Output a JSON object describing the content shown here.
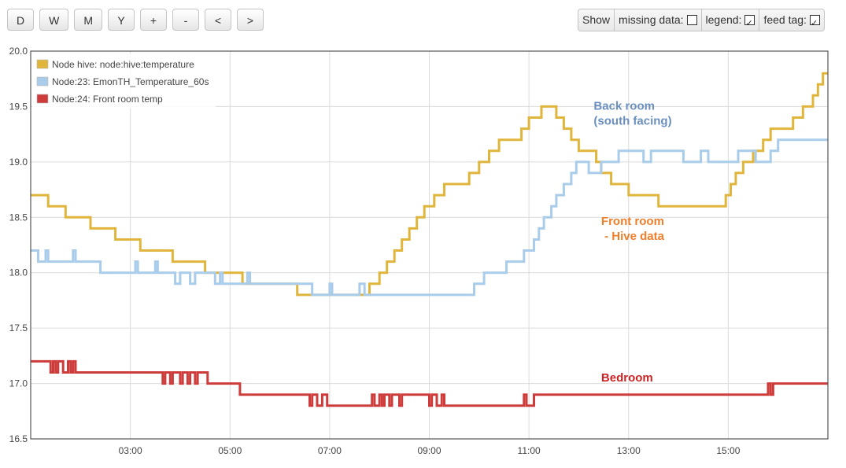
{
  "toolbar": {
    "buttons": [
      "D",
      "W",
      "M",
      "Y",
      "+",
      "-",
      "<",
      ">"
    ]
  },
  "options": {
    "show_label": "Show",
    "missing_label": "missing data:",
    "missing_checked": false,
    "legend_label": "legend:",
    "legend_checked": true,
    "feedtag_label": "feed tag:",
    "feedtag_checked": true
  },
  "chart_data": {
    "type": "line",
    "xlim": [
      1.0,
      17.0
    ],
    "ylim": [
      16.5,
      20.0
    ],
    "xticks": [
      "03:00",
      "05:00",
      "07:00",
      "09:00",
      "11:00",
      "13:00",
      "15:00"
    ],
    "yticks": [
      "16.5",
      "17.0",
      "17.5",
      "18.0",
      "18.5",
      "19.0",
      "19.5",
      "20.0"
    ],
    "grid": true,
    "legend_position": "top-left",
    "series": [
      {
        "name": "Node hive: node:hive:temperature",
        "color": "#e0b53c",
        "points": [
          [
            1.0,
            18.7
          ],
          [
            1.35,
            18.7
          ],
          [
            1.35,
            18.6
          ],
          [
            1.7,
            18.6
          ],
          [
            1.7,
            18.5
          ],
          [
            2.2,
            18.5
          ],
          [
            2.2,
            18.4
          ],
          [
            2.7,
            18.4
          ],
          [
            2.7,
            18.3
          ],
          [
            3.2,
            18.3
          ],
          [
            3.2,
            18.2
          ],
          [
            3.85,
            18.2
          ],
          [
            3.85,
            18.1
          ],
          [
            4.5,
            18.1
          ],
          [
            4.5,
            18.0
          ],
          [
            5.25,
            18.0
          ],
          [
            5.25,
            17.9
          ],
          [
            6.35,
            17.9
          ],
          [
            6.35,
            17.8
          ],
          [
            7.45,
            17.8
          ],
          [
            7.45,
            17.8
          ],
          [
            7.8,
            17.8
          ],
          [
            7.8,
            17.9
          ],
          [
            8.0,
            17.9
          ],
          [
            8.0,
            18.0
          ],
          [
            8.15,
            18.0
          ],
          [
            8.15,
            18.1
          ],
          [
            8.3,
            18.1
          ],
          [
            8.3,
            18.2
          ],
          [
            8.45,
            18.2
          ],
          [
            8.45,
            18.3
          ],
          [
            8.6,
            18.3
          ],
          [
            8.6,
            18.4
          ],
          [
            8.75,
            18.4
          ],
          [
            8.75,
            18.5
          ],
          [
            8.9,
            18.5
          ],
          [
            8.9,
            18.6
          ],
          [
            9.1,
            18.6
          ],
          [
            9.1,
            18.7
          ],
          [
            9.3,
            18.7
          ],
          [
            9.3,
            18.8
          ],
          [
            9.8,
            18.8
          ],
          [
            9.8,
            18.9
          ],
          [
            10.0,
            18.9
          ],
          [
            10.0,
            19.0
          ],
          [
            10.2,
            19.0
          ],
          [
            10.2,
            19.1
          ],
          [
            10.4,
            19.1
          ],
          [
            10.4,
            19.2
          ],
          [
            10.85,
            19.2
          ],
          [
            10.85,
            19.3
          ],
          [
            11.0,
            19.3
          ],
          [
            11.0,
            19.4
          ],
          [
            11.25,
            19.4
          ],
          [
            11.25,
            19.5
          ],
          [
            11.55,
            19.5
          ],
          [
            11.55,
            19.4
          ],
          [
            11.7,
            19.4
          ],
          [
            11.7,
            19.3
          ],
          [
            11.85,
            19.3
          ],
          [
            11.85,
            19.2
          ],
          [
            12.0,
            19.2
          ],
          [
            12.0,
            19.1
          ],
          [
            12.35,
            19.1
          ],
          [
            12.35,
            19.0
          ],
          [
            12.45,
            19.0
          ],
          [
            12.45,
            18.9
          ],
          [
            12.65,
            18.9
          ],
          [
            12.65,
            18.8
          ],
          [
            13.0,
            18.8
          ],
          [
            13.0,
            18.7
          ],
          [
            13.6,
            18.7
          ],
          [
            13.6,
            18.6
          ],
          [
            14.95,
            18.6
          ],
          [
            14.95,
            18.7
          ],
          [
            15.05,
            18.7
          ],
          [
            15.05,
            18.8
          ],
          [
            15.15,
            18.8
          ],
          [
            15.15,
            18.9
          ],
          [
            15.3,
            18.9
          ],
          [
            15.3,
            19.0
          ],
          [
            15.5,
            19.0
          ],
          [
            15.5,
            19.1
          ],
          [
            15.7,
            19.1
          ],
          [
            15.7,
            19.2
          ],
          [
            15.85,
            19.2
          ],
          [
            15.85,
            19.3
          ],
          [
            16.3,
            19.3
          ],
          [
            16.3,
            19.4
          ],
          [
            16.5,
            19.4
          ],
          [
            16.5,
            19.5
          ],
          [
            16.7,
            19.5
          ],
          [
            16.7,
            19.6
          ],
          [
            16.8,
            19.6
          ],
          [
            16.8,
            19.7
          ],
          [
            16.9,
            19.7
          ],
          [
            16.9,
            19.8
          ],
          [
            17.0,
            19.8
          ]
        ]
      },
      {
        "name": "Node:23: EmonTH_Temperature_60s",
        "color": "#a8cce9",
        "points": [
          [
            1.0,
            18.2
          ],
          [
            1.15,
            18.2
          ],
          [
            1.15,
            18.1
          ],
          [
            1.3,
            18.1
          ],
          [
            1.3,
            18.2
          ],
          [
            1.35,
            18.2
          ],
          [
            1.35,
            18.1
          ],
          [
            1.85,
            18.1
          ],
          [
            1.85,
            18.2
          ],
          [
            1.9,
            18.2
          ],
          [
            1.9,
            18.1
          ],
          [
            2.4,
            18.1
          ],
          [
            2.4,
            18.0
          ],
          [
            3.1,
            18.0
          ],
          [
            3.1,
            18.1
          ],
          [
            3.15,
            18.1
          ],
          [
            3.15,
            18.0
          ],
          [
            3.5,
            18.0
          ],
          [
            3.5,
            18.1
          ],
          [
            3.55,
            18.1
          ],
          [
            3.55,
            18.0
          ],
          [
            3.9,
            18.0
          ],
          [
            3.9,
            17.9
          ],
          [
            4.0,
            17.9
          ],
          [
            4.0,
            18.0
          ],
          [
            4.2,
            18.0
          ],
          [
            4.2,
            17.9
          ],
          [
            4.3,
            17.9
          ],
          [
            4.3,
            18.0
          ],
          [
            4.7,
            18.0
          ],
          [
            4.7,
            17.9
          ],
          [
            4.8,
            17.9
          ],
          [
            4.8,
            18.0
          ],
          [
            4.85,
            18.0
          ],
          [
            4.85,
            17.9
          ],
          [
            5.35,
            17.9
          ],
          [
            5.35,
            18.0
          ],
          [
            5.4,
            18.0
          ],
          [
            5.4,
            17.9
          ],
          [
            6.65,
            17.9
          ],
          [
            6.65,
            17.8
          ],
          [
            7.0,
            17.8
          ],
          [
            7.0,
            17.9
          ],
          [
            7.05,
            17.9
          ],
          [
            7.05,
            17.8
          ],
          [
            7.6,
            17.8
          ],
          [
            7.6,
            17.9
          ],
          [
            7.7,
            17.9
          ],
          [
            7.7,
            17.8
          ],
          [
            9.9,
            17.8
          ],
          [
            9.9,
            17.9
          ],
          [
            10.1,
            17.9
          ],
          [
            10.1,
            18.0
          ],
          [
            10.55,
            18.0
          ],
          [
            10.55,
            18.1
          ],
          [
            10.9,
            18.1
          ],
          [
            10.9,
            18.2
          ],
          [
            11.1,
            18.2
          ],
          [
            11.1,
            18.3
          ],
          [
            11.2,
            18.3
          ],
          [
            11.2,
            18.4
          ],
          [
            11.3,
            18.4
          ],
          [
            11.3,
            18.5
          ],
          [
            11.45,
            18.5
          ],
          [
            11.45,
            18.6
          ],
          [
            11.55,
            18.6
          ],
          [
            11.55,
            18.7
          ],
          [
            11.7,
            18.7
          ],
          [
            11.7,
            18.8
          ],
          [
            11.85,
            18.8
          ],
          [
            11.85,
            18.9
          ],
          [
            11.95,
            18.9
          ],
          [
            11.95,
            19.0
          ],
          [
            12.2,
            19.0
          ],
          [
            12.2,
            18.9
          ],
          [
            12.45,
            18.9
          ],
          [
            12.45,
            19.0
          ],
          [
            12.8,
            19.0
          ],
          [
            12.8,
            19.1
          ],
          [
            13.3,
            19.1
          ],
          [
            13.3,
            19.0
          ],
          [
            13.45,
            19.0
          ],
          [
            13.45,
            19.1
          ],
          [
            14.1,
            19.1
          ],
          [
            14.1,
            19.0
          ],
          [
            14.45,
            19.0
          ],
          [
            14.45,
            19.1
          ],
          [
            14.6,
            19.1
          ],
          [
            14.6,
            19.0
          ],
          [
            15.2,
            19.0
          ],
          [
            15.2,
            19.1
          ],
          [
            15.55,
            19.1
          ],
          [
            15.55,
            19.0
          ],
          [
            15.85,
            19.0
          ],
          [
            15.85,
            19.1
          ],
          [
            16.0,
            19.1
          ],
          [
            16.0,
            19.2
          ],
          [
            17.0,
            19.2
          ]
        ]
      },
      {
        "name": "Node:24: Front room temp",
        "color": "#cd3b3b",
        "points": [
          [
            1.0,
            17.2
          ],
          [
            1.4,
            17.2
          ],
          [
            1.4,
            17.1
          ],
          [
            1.45,
            17.1
          ],
          [
            1.45,
            17.2
          ],
          [
            1.5,
            17.2
          ],
          [
            1.5,
            17.1
          ],
          [
            1.55,
            17.1
          ],
          [
            1.55,
            17.2
          ],
          [
            1.65,
            17.2
          ],
          [
            1.65,
            17.1
          ],
          [
            1.75,
            17.1
          ],
          [
            1.75,
            17.2
          ],
          [
            1.8,
            17.2
          ],
          [
            1.8,
            17.1
          ],
          [
            1.85,
            17.1
          ],
          [
            1.85,
            17.2
          ],
          [
            1.9,
            17.2
          ],
          [
            1.9,
            17.1
          ],
          [
            3.65,
            17.1
          ],
          [
            3.65,
            17.0
          ],
          [
            3.7,
            17.0
          ],
          [
            3.7,
            17.1
          ],
          [
            3.8,
            17.1
          ],
          [
            3.8,
            17.0
          ],
          [
            3.85,
            17.0
          ],
          [
            3.85,
            17.1
          ],
          [
            4.0,
            17.1
          ],
          [
            4.0,
            17.0
          ],
          [
            4.05,
            17.0
          ],
          [
            4.05,
            17.1
          ],
          [
            4.15,
            17.1
          ],
          [
            4.15,
            17.0
          ],
          [
            4.2,
            17.0
          ],
          [
            4.2,
            17.1
          ],
          [
            4.3,
            17.1
          ],
          [
            4.3,
            17.0
          ],
          [
            4.35,
            17.0
          ],
          [
            4.35,
            17.1
          ],
          [
            4.55,
            17.1
          ],
          [
            4.55,
            17.0
          ],
          [
            5.2,
            17.0
          ],
          [
            5.2,
            16.9
          ],
          [
            6.6,
            16.9
          ],
          [
            6.6,
            16.8
          ],
          [
            6.65,
            16.8
          ],
          [
            6.65,
            16.9
          ],
          [
            6.75,
            16.9
          ],
          [
            6.75,
            16.8
          ],
          [
            6.85,
            16.8
          ],
          [
            6.85,
            16.9
          ],
          [
            6.95,
            16.9
          ],
          [
            6.95,
            16.8
          ],
          [
            7.85,
            16.8
          ],
          [
            7.85,
            16.9
          ],
          [
            7.9,
            16.9
          ],
          [
            7.9,
            16.8
          ],
          [
            8.0,
            16.8
          ],
          [
            8.0,
            16.9
          ],
          [
            8.05,
            16.9
          ],
          [
            8.05,
            16.8
          ],
          [
            8.1,
            16.8
          ],
          [
            8.1,
            16.9
          ],
          [
            8.2,
            16.9
          ],
          [
            8.2,
            16.8
          ],
          [
            8.25,
            16.8
          ],
          [
            8.25,
            16.9
          ],
          [
            8.4,
            16.9
          ],
          [
            8.4,
            16.8
          ],
          [
            8.45,
            16.8
          ],
          [
            8.45,
            16.9
          ],
          [
            9.0,
            16.9
          ],
          [
            9.0,
            16.8
          ],
          [
            9.05,
            16.8
          ],
          [
            9.05,
            16.9
          ],
          [
            9.15,
            16.9
          ],
          [
            9.15,
            16.8
          ],
          [
            9.25,
            16.8
          ],
          [
            9.25,
            16.9
          ],
          [
            9.3,
            16.9
          ],
          [
            9.3,
            16.8
          ],
          [
            10.9,
            16.8
          ],
          [
            10.9,
            16.9
          ],
          [
            10.95,
            16.9
          ],
          [
            10.95,
            16.8
          ],
          [
            11.1,
            16.8
          ],
          [
            11.1,
            16.9
          ],
          [
            15.8,
            16.9
          ],
          [
            15.8,
            17.0
          ],
          [
            15.85,
            17.0
          ],
          [
            15.85,
            16.9
          ],
          [
            15.9,
            16.9
          ],
          [
            15.9,
            17.0
          ],
          [
            17.0,
            17.0
          ]
        ]
      }
    ],
    "annotations": [
      {
        "lines": [
          "Back room",
          "(south facing)"
        ],
        "color": "#6a8fbf",
        "x": 12.3,
        "y": 19.47
      },
      {
        "lines": [
          "Front room",
          " - Hive data"
        ],
        "color": "#f07d2a",
        "x": 12.45,
        "y": 18.43
      },
      {
        "lines": [
          "Bedroom"
        ],
        "color": "#cc2222",
        "x": 12.45,
        "y": 17.02
      }
    ]
  }
}
